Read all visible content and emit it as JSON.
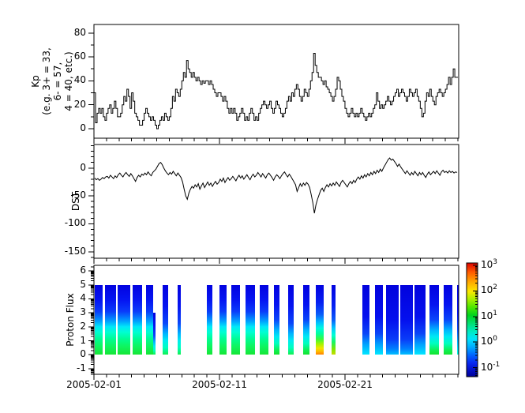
{
  "figure": {
    "background": "#ffffff",
    "line_color": "#000000",
    "frame_color": "#000000"
  },
  "x_axis": {
    "tick_labels": [
      "2005-02-01",
      "2005-02-11",
      "2005-02-21"
    ],
    "major_tick_days": [
      0,
      10,
      20
    ],
    "minor_tick_every_days": 1,
    "range_days": [
      0,
      29.06
    ]
  },
  "panels": {
    "kp": {
      "ylabel_lines": [
        "Kp",
        "(e.g. 3+ = 33,",
        "6- = 57,",
        "4 = 40, etc.)"
      ],
      "ytick_labels": [
        "0",
        "20",
        "40",
        "60",
        "80"
      ],
      "yticks": [
        0,
        20,
        40,
        60,
        80
      ],
      "yminors": [
        10,
        30,
        50,
        70
      ],
      "ylim": [
        -7.9,
        87.1
      ]
    },
    "dst": {
      "ylabel": "DST",
      "ytick_labels": [
        "0",
        "-50",
        "-100",
        "-150"
      ],
      "yticks": [
        0,
        -50,
        -100,
        -150
      ],
      "ylim": [
        -161.6,
        42.1
      ]
    },
    "proton": {
      "ylabel": "Proton Flux",
      "ytick_labels": [
        "6",
        "5",
        "4",
        "3",
        "2",
        "1",
        "0",
        "-1"
      ],
      "yticks": [
        6,
        5,
        4,
        3,
        2,
        1,
        0,
        -1
      ],
      "ylim": [
        -1.405,
        6.405
      ],
      "scale": "log"
    }
  },
  "colorbar": {
    "tick_labels": [
      {
        "base": "10",
        "exp": "3"
      },
      {
        "base": "10",
        "exp": "2"
      },
      {
        "base": "10",
        "exp": "1"
      },
      {
        "base": "10",
        "exp": "0"
      },
      {
        "base": "10",
        "exp": "-1"
      }
    ],
    "tick_exponents": [
      3,
      2,
      1,
      0,
      -1
    ],
    "gradient": [
      [
        "#dd0000",
        0
      ],
      [
        "#ff5a00",
        8
      ],
      [
        "#ffaa00",
        17
      ],
      [
        "#fce800",
        25
      ],
      [
        "#a8ee00",
        32
      ],
      [
        "#4ce600",
        39
      ],
      [
        "#00d41e",
        46
      ],
      [
        "#00e17c",
        54
      ],
      [
        "#00eac8",
        61
      ],
      [
        "#00e2fc",
        67
      ],
      [
        "#00acff",
        74
      ],
      [
        "#0064ff",
        81
      ],
      [
        "#0828f0",
        88
      ],
      [
        "#0410c8",
        94
      ],
      [
        "#000096",
        100
      ]
    ]
  },
  "chart_data": [
    {
      "type": "line",
      "title": "Kp index",
      "style": "steps",
      "x_unit": "days since 2005-02-01",
      "x_step_days": 0.125,
      "ylim": [
        -7.9,
        87.1
      ],
      "yticks": [
        0,
        20,
        40,
        60,
        80
      ],
      "values": [
        30,
        5,
        13,
        17,
        13,
        17,
        10,
        7,
        13,
        17,
        20,
        13,
        17,
        23,
        17,
        10,
        10,
        13,
        20,
        27,
        23,
        33,
        27,
        17,
        30,
        23,
        13,
        10,
        7,
        3,
        3,
        7,
        13,
        17,
        13,
        10,
        7,
        10,
        7,
        3,
        0,
        3,
        7,
        10,
        7,
        13,
        10,
        7,
        10,
        17,
        27,
        23,
        33,
        30,
        27,
        33,
        40,
        47,
        43,
        57,
        50,
        47,
        43,
        47,
        43,
        40,
        43,
        40,
        37,
        40,
        38,
        40,
        40,
        37,
        40,
        37,
        33,
        30,
        27,
        30,
        30,
        27,
        23,
        27,
        23,
        17,
        13,
        17,
        13,
        17,
        13,
        7,
        10,
        13,
        17,
        13,
        7,
        10,
        7,
        13,
        17,
        13,
        7,
        10,
        7,
        13,
        17,
        20,
        23,
        20,
        17,
        20,
        23,
        17,
        13,
        17,
        23,
        20,
        17,
        13,
        10,
        13,
        17,
        23,
        27,
        23,
        30,
        27,
        33,
        37,
        33,
        27,
        23,
        27,
        33,
        30,
        27,
        33,
        40,
        47,
        63,
        53,
        47,
        43,
        43,
        40,
        37,
        40,
        35,
        33,
        30,
        27,
        23,
        27,
        33,
        43,
        40,
        33,
        27,
        23,
        17,
        13,
        10,
        13,
        17,
        13,
        10,
        13,
        10,
        13,
        17,
        13,
        10,
        7,
        10,
        13,
        10,
        13,
        17,
        20,
        30,
        23,
        17,
        20,
        17,
        20,
        23,
        27,
        23,
        20,
        23,
        27,
        30,
        33,
        27,
        30,
        33,
        30,
        27,
        23,
        27,
        33,
        30,
        27,
        30,
        33,
        27,
        23,
        17,
        10,
        13,
        23,
        30,
        27,
        33,
        27,
        23,
        20,
        27,
        30,
        33,
        30,
        27,
        30,
        33,
        37,
        43,
        37,
        43,
        50,
        43,
        43
      ]
    },
    {
      "type": "line",
      "title": "DST index",
      "style": "line",
      "x_unit": "days since 2005-02-01",
      "x_step_days": 0.125,
      "ylim": [
        -161.6,
        42.1
      ],
      "yticks": [
        0,
        -50,
        -100,
        -150
      ],
      "values": [
        -18,
        -21,
        -19,
        -22,
        -20,
        -17,
        -19,
        -16,
        -15,
        -18,
        -13,
        -16,
        -19,
        -14,
        -17,
        -12,
        -9,
        -13,
        -16,
        -11,
        -8,
        -12,
        -15,
        -10,
        -14,
        -19,
        -24,
        -17,
        -13,
        -16,
        -11,
        -13,
        -9,
        -12,
        -7,
        -11,
        -14,
        -8,
        -5,
        -2,
        3,
        8,
        10,
        6,
        0,
        -5,
        -9,
        -12,
        -8,
        -11,
        -6,
        -10,
        -14,
        -9,
        -13,
        -17,
        -25,
        -38,
        -50,
        -56,
        -45,
        -38,
        -33,
        -36,
        -30,
        -34,
        -28,
        -38,
        -32,
        -27,
        -35,
        -30,
        -25,
        -31,
        -27,
        -33,
        -28,
        -24,
        -29,
        -26,
        -20,
        -24,
        -18,
        -26,
        -21,
        -17,
        -22,
        -19,
        -15,
        -19,
        -23,
        -17,
        -13,
        -18,
        -14,
        -20,
        -16,
        -12,
        -17,
        -21,
        -15,
        -11,
        -16,
        -13,
        -8,
        -12,
        -16,
        -10,
        -14,
        -18,
        -12,
        -9,
        -13,
        -17,
        -22,
        -16,
        -12,
        -15,
        -19,
        -14,
        -10,
        -7,
        -12,
        -16,
        -11,
        -15,
        -20,
        -25,
        -30,
        -42,
        -35,
        -28,
        -33,
        -27,
        -31,
        -26,
        -29,
        -35,
        -48,
        -62,
        -81,
        -66,
        -56,
        -48,
        -40,
        -36,
        -42,
        -35,
        -30,
        -34,
        -28,
        -32,
        -27,
        -31,
        -25,
        -29,
        -33,
        -26,
        -22,
        -26,
        -30,
        -34,
        -28,
        -24,
        -28,
        -22,
        -26,
        -20,
        -16,
        -20,
        -14,
        -18,
        -12,
        -16,
        -10,
        -14,
        -8,
        -12,
        -6,
        -10,
        -4,
        -8,
        -2,
        -6,
        0,
        5,
        10,
        15,
        18,
        14,
        16,
        12,
        8,
        3,
        7,
        2,
        -2,
        -6,
        -10,
        -5,
        -9,
        -13,
        -8,
        -12,
        -6,
        -10,
        -14,
        -8,
        -12,
        -8,
        -13,
        -17,
        -11,
        -7,
        -12,
        -9,
        -6,
        -10,
        -5,
        -9,
        -13,
        -7,
        -4,
        -8,
        -6,
        -9,
        -5,
        -8,
        -6,
        -9,
        -7,
        -8
      ]
    },
    {
      "type": "heatmap",
      "title": "Proton Flux spectrogram",
      "x_unit": "days since 2005-02-01",
      "y_range_log10": [
        0,
        5
      ],
      "color_scale_range": [
        "1e-1",
        "1e3"
      ],
      "profiles": {
        "green": [
          [
            "#0202e0",
            0
          ],
          [
            "#0516f2",
            22
          ],
          [
            "#0a3cfa",
            38
          ],
          [
            "#00a0ff",
            52
          ],
          [
            "#00e8f8",
            60
          ],
          [
            "#00ffd0",
            68
          ],
          [
            "#00fc91",
            78
          ],
          [
            "#0ef560",
            88
          ],
          [
            "#16e636",
            100
          ]
        ],
        "greenLow": [
          [
            "#0202e0",
            0
          ],
          [
            "#0514f0",
            28
          ],
          [
            "#0a46fa",
            50
          ],
          [
            "#00b0ff",
            64
          ],
          [
            "#00e8f4",
            74
          ],
          [
            "#00ffbe",
            84
          ],
          [
            "#0ff050",
            94
          ],
          [
            "#14e232",
            100
          ]
        ],
        "cyanGreen": [
          [
            "#0202e0",
            0
          ],
          [
            "#0514f0",
            30
          ],
          [
            "#0a46fa",
            55
          ],
          [
            "#00b4ff",
            70
          ],
          [
            "#00ecf0",
            80
          ],
          [
            "#00ffc0",
            90
          ],
          [
            "#12ef52",
            100
          ]
        ],
        "cyan": [
          [
            "#0202e0",
            0
          ],
          [
            "#0411ee",
            40
          ],
          [
            "#0a50fa",
            65
          ],
          [
            "#00aaff",
            80
          ],
          [
            "#00e4ff",
            92
          ],
          [
            "#00ffd8",
            100
          ]
        ],
        "blueCyan": [
          [
            "#0202dd",
            0
          ],
          [
            "#0410ee",
            45
          ],
          [
            "#0a46f8",
            70
          ],
          [
            "#00a0ff",
            85
          ],
          [
            "#00e8ff",
            100
          ]
        ],
        "blue": [
          [
            "#0202dd",
            0
          ],
          [
            "#0410ee",
            50
          ],
          [
            "#0a3cf8",
            78
          ],
          [
            "#0080ff",
            92
          ],
          [
            "#00c0ff",
            100
          ]
        ],
        "hot": [
          [
            "#0202e0",
            0
          ],
          [
            "#0520f2",
            25
          ],
          [
            "#0a5cfa",
            42
          ],
          [
            "#00c0ff",
            54
          ],
          [
            "#00f8e0",
            62
          ],
          [
            "#00ff9c",
            70
          ],
          [
            "#3cf93c",
            78
          ],
          [
            "#a6f400",
            85
          ],
          [
            "#f2e600",
            91
          ],
          [
            "#ffb400",
            96
          ],
          [
            "#ff7e00",
            100
          ]
        ],
        "yellowGreen": [
          [
            "#0202e0",
            0
          ],
          [
            "#0520f2",
            30
          ],
          [
            "#0a5cfa",
            50
          ],
          [
            "#00c8ff",
            62
          ],
          [
            "#00ffd4",
            72
          ],
          [
            "#16f564",
            82
          ],
          [
            "#7de800",
            92
          ],
          [
            "#c8dc00",
            100
          ]
        ]
      },
      "stripes": [
        {
          "d0": 0.05,
          "d1": 0.7,
          "p": "green"
        },
        {
          "d0": 0.85,
          "d1": 1.75,
          "p": "green"
        },
        {
          "d0": 1.9,
          "d1": 2.9,
          "p": "green"
        },
        {
          "d0": 3.05,
          "d1": 3.85,
          "p": "green"
        },
        {
          "d0": 4.15,
          "d1": 4.72,
          "p": "green"
        },
        {
          "d0": 4.72,
          "d1": 4.9,
          "p": "cyanGreen",
          "y1": 3
        },
        {
          "d0": 5.45,
          "d1": 5.95,
          "p": "cyanGreen"
        },
        {
          "d0": 6.65,
          "d1": 6.9,
          "p": "cyanGreen"
        },
        {
          "d0": 8.98,
          "d1": 9.43,
          "p": "green"
        },
        {
          "d0": 9.98,
          "d1": 10.55,
          "p": "green"
        },
        {
          "d0": 10.96,
          "d1": 11.65,
          "p": "green"
        },
        {
          "d0": 12.08,
          "d1": 12.81,
          "p": "green"
        },
        {
          "d0": 13.21,
          "d1": 13.9,
          "p": "green"
        },
        {
          "d0": 14.32,
          "d1": 14.8,
          "p": "greenLow"
        },
        {
          "d0": 15.47,
          "d1": 15.93,
          "p": "cyanGreen"
        },
        {
          "d0": 16.65,
          "d1": 17.15,
          "p": "greenLow"
        },
        {
          "d0": 17.7,
          "d1": 18.3,
          "p": "hot"
        },
        {
          "d0": 18.95,
          "d1": 19.25,
          "p": "yellowGreen"
        },
        {
          "d0": 21.4,
          "d1": 21.95,
          "p": "blueCyan"
        },
        {
          "d0": 22.4,
          "d1": 23.0,
          "p": "blueCyan"
        },
        {
          "d0": 23.3,
          "d1": 24.3,
          "p": "blue"
        },
        {
          "d0": 24.4,
          "d1": 25.4,
          "p": "blue"
        },
        {
          "d0": 25.55,
          "d1": 26.45,
          "p": "blueCyan"
        },
        {
          "d0": 26.7,
          "d1": 27.5,
          "p": "greenLow"
        },
        {
          "d0": 27.85,
          "d1": 28.55,
          "p": "greenLow"
        },
        {
          "d0": 28.9,
          "d1": 29.05,
          "p": "cyan"
        }
      ]
    }
  ]
}
